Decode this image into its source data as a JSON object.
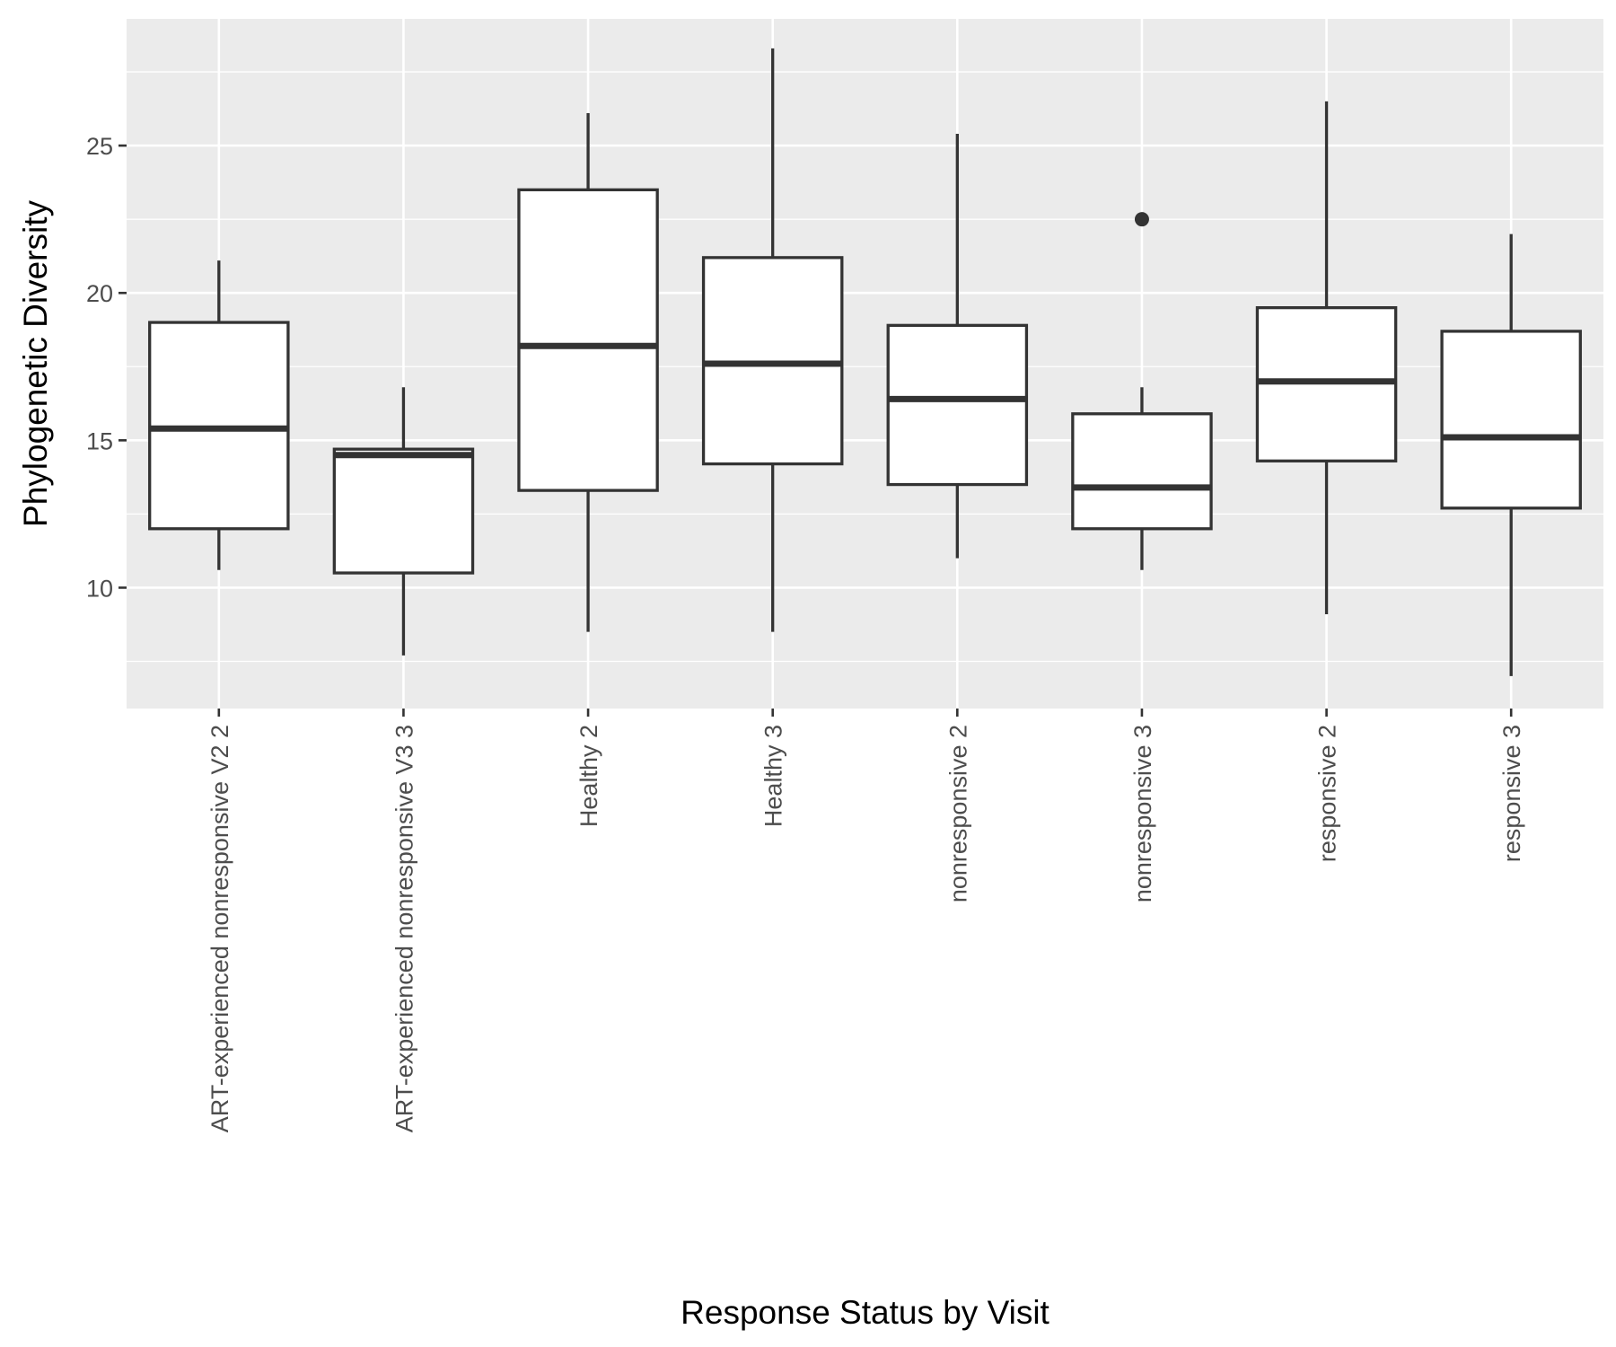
{
  "chart_data": {
    "type": "boxplot",
    "title": "",
    "xlabel": "Response Status by Visit",
    "ylabel": "Phylogenetic Diversity",
    "ylim": [
      5.9,
      29.3
    ],
    "yticks": [
      10,
      15,
      20,
      25
    ],
    "grid": true,
    "legend": "none",
    "categories": [
      "ART-experienced nonresponsive V2 2",
      "ART-experienced nonresponsive V3 3",
      "Healthy 2",
      "Healthy 3",
      "nonresponsive 2",
      "nonresponsive 3",
      "responsive 2",
      "responsive 3"
    ],
    "boxes": [
      {
        "lower_whisker": 10.6,
        "q1": 12.0,
        "median": 15.4,
        "q3": 19.0,
        "upper_whisker": 21.1,
        "outliers": []
      },
      {
        "lower_whisker": 7.7,
        "q1": 10.5,
        "median": 14.5,
        "q3": 14.7,
        "upper_whisker": 16.8,
        "outliers": []
      },
      {
        "lower_whisker": 8.5,
        "q1": 13.3,
        "median": 18.2,
        "q3": 23.5,
        "upper_whisker": 26.1,
        "outliers": []
      },
      {
        "lower_whisker": 8.5,
        "q1": 14.2,
        "median": 17.6,
        "q3": 21.2,
        "upper_whisker": 28.3,
        "outliers": []
      },
      {
        "lower_whisker": 11.0,
        "q1": 13.5,
        "median": 16.4,
        "q3": 18.9,
        "upper_whisker": 25.4,
        "outliers": []
      },
      {
        "lower_whisker": 10.6,
        "q1": 12.0,
        "median": 13.4,
        "q3": 15.9,
        "upper_whisker": 16.8,
        "outliers": [
          22.5
        ]
      },
      {
        "lower_whisker": 9.1,
        "q1": 14.3,
        "median": 17.0,
        "q3": 19.5,
        "upper_whisker": 26.5,
        "outliers": []
      },
      {
        "lower_whisker": 7.0,
        "q1": 12.7,
        "median": 15.1,
        "q3": 18.7,
        "upper_whisker": 22.0,
        "outliers": []
      }
    ],
    "colors": {
      "panel": "#ebebeb",
      "grid_major": "#ffffff",
      "box_fill": "#ffffff",
      "box_line": "#333333",
      "tick_text": "#4d4d4d",
      "title_text": "#000000"
    }
  }
}
